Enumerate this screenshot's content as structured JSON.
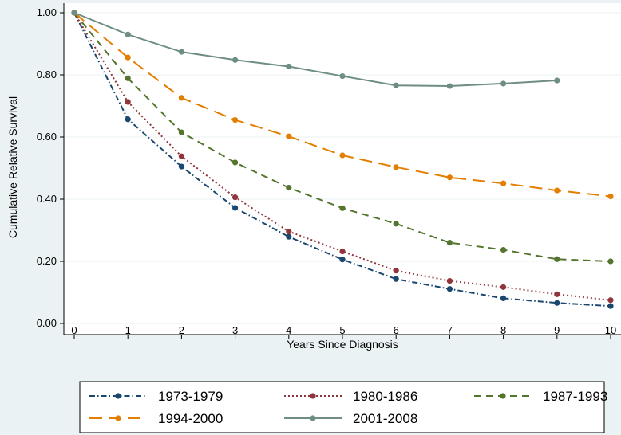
{
  "chart_data": {
    "type": "line",
    "xlabel": "Years Since Diagnosis",
    "ylabel": "Cumulative Relative Survival",
    "xlim": [
      0,
      10
    ],
    "ylim": [
      0,
      1
    ],
    "x_ticks": [
      "0",
      "1",
      "2",
      "3",
      "4",
      "5",
      "6",
      "7",
      "8",
      "9",
      "10"
    ],
    "y_ticks": [
      "0.00",
      "0.20",
      "0.40",
      "0.60",
      "0.80",
      "1.00"
    ],
    "grid": "horizontal",
    "legend_position": "bottom",
    "series": [
      {
        "name": "1973-1979",
        "color": "#1a476f",
        "dash": "dash-dot",
        "x": [
          0,
          1,
          2,
          3,
          4,
          5,
          6,
          7,
          8,
          9,
          10
        ],
        "values": [
          1.0,
          0.657,
          0.505,
          0.372,
          0.279,
          0.206,
          0.143,
          0.111,
          0.081,
          0.066,
          0.056
        ]
      },
      {
        "name": "1980-1986",
        "color": "#90353b",
        "dash": "dot",
        "x": [
          0,
          1,
          2,
          3,
          4,
          5,
          6,
          7,
          8,
          9,
          10
        ],
        "values": [
          1.0,
          0.713,
          0.538,
          0.406,
          0.296,
          0.232,
          0.17,
          0.137,
          0.117,
          0.094,
          0.075
        ]
      },
      {
        "name": "1987-1993",
        "color": "#55752f",
        "dash": "dash",
        "x": [
          0,
          1,
          2,
          3,
          4,
          5,
          6,
          7,
          8,
          9,
          10
        ],
        "values": [
          1.0,
          0.789,
          0.615,
          0.518,
          0.437,
          0.371,
          0.321,
          0.26,
          0.237,
          0.207,
          0.2
        ]
      },
      {
        "name": "1994-2000",
        "color": "#e37e00",
        "dash": "long-dash",
        "x": [
          0,
          1,
          2,
          3,
          4,
          5,
          6,
          7,
          8,
          9,
          10
        ],
        "values": [
          1.0,
          0.856,
          0.726,
          0.655,
          0.602,
          0.541,
          0.503,
          0.47,
          0.451,
          0.428,
          0.409
        ]
      },
      {
        "name": "2001-2008",
        "color": "#6e8e84",
        "dash": "solid",
        "x": [
          0,
          1,
          2,
          3,
          4,
          5,
          6,
          7,
          8,
          9
        ],
        "values": [
          1.0,
          0.93,
          0.874,
          0.848,
          0.827,
          0.796,
          0.766,
          0.764,
          0.772,
          0.782
        ]
      }
    ]
  }
}
